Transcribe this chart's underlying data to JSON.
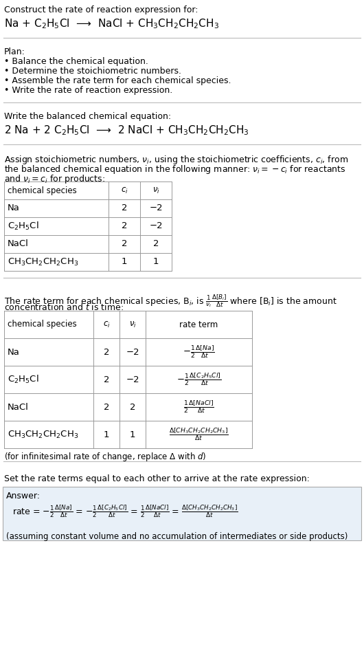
{
  "bg_color": "#ffffff",
  "title_text": "Construct the rate of reaction expression for:",
  "reaction_unbalanced": "Na + C$_2$H$_5$Cl  ⟶  NaCl + CH$_3$CH$_2$CH$_2$CH$_3$",
  "plan_header": "Plan:",
  "plan_items": [
    "• Balance the chemical equation.",
    "• Determine the stoichiometric numbers.",
    "• Assemble the rate term for each chemical species.",
    "• Write the rate of reaction expression."
  ],
  "balanced_header": "Write the balanced chemical equation:",
  "balanced_eq": "2 Na + 2 C$_2$H$_5$Cl  ⟶  2 NaCl + CH$_3$CH$_2$CH$_2$CH$_3$",
  "stoich_intro1": "Assign stoichiometric numbers, $\\nu_i$, using the stoichiometric coefficients, $c_i$, from",
  "stoich_intro2": "the balanced chemical equation in the following manner: $\\nu_i = -c_i$ for reactants",
  "stoich_intro3": "and $\\nu_i = c_i$ for products:",
  "table1_headers": [
    "chemical species",
    "$c_i$",
    "$\\nu_i$"
  ],
  "table1_rows": [
    [
      "Na",
      "2",
      "−2"
    ],
    [
      "C$_2$H$_5$Cl",
      "2",
      "−2"
    ],
    [
      "NaCl",
      "2",
      "2"
    ],
    [
      "CH$_3$CH$_2$CH$_2$CH$_3$",
      "1",
      "1"
    ]
  ],
  "rate_intro1": "The rate term for each chemical species, B$_i$, is $\\frac{1}{\\nu_i}\\frac{\\Delta[B_i]}{\\Delta t}$ where [B$_i$] is the amount",
  "rate_intro2": "concentration and $t$ is time:",
  "table2_headers": [
    "chemical species",
    "$c_i$",
    "$\\nu_i$",
    "rate term"
  ],
  "table2_rows": [
    [
      "Na",
      "2",
      "−2",
      "$-\\frac{1}{2}\\frac{\\Delta[Na]}{\\Delta t}$"
    ],
    [
      "C$_2$H$_5$Cl",
      "2",
      "−2",
      "$-\\frac{1}{2}\\frac{\\Delta[C_2H_5Cl]}{\\Delta t}$"
    ],
    [
      "NaCl",
      "2",
      "2",
      "$\\frac{1}{2}\\frac{\\Delta[NaCl]}{\\Delta t}$"
    ],
    [
      "CH$_3$CH$_2$CH$_2$CH$_3$",
      "1",
      "1",
      "$\\frac{\\Delta[CH_3CH_2CH_2CH_3]}{\\Delta t}$"
    ]
  ],
  "infinitesimal_note": "(for infinitesimal rate of change, replace Δ with $d$)",
  "rate_expr_header": "Set the rate terms equal to each other to arrive at the rate expression:",
  "answer_label": "Answer:",
  "rate_expr_line": "rate = $-\\frac{1}{2}\\frac{\\Delta[Na]}{\\Delta t}$ = $-\\frac{1}{2}\\frac{\\Delta[C_2H_5Cl]}{\\Delta t}$ = $\\frac{1}{2}\\frac{\\Delta[NaCl]}{\\Delta t}$ = $\\frac{\\Delta[CH_3CH_2CH_2CH_3]}{\\Delta t}$",
  "assumption_note": "(assuming constant volume and no accumulation of intermediates or side products)"
}
